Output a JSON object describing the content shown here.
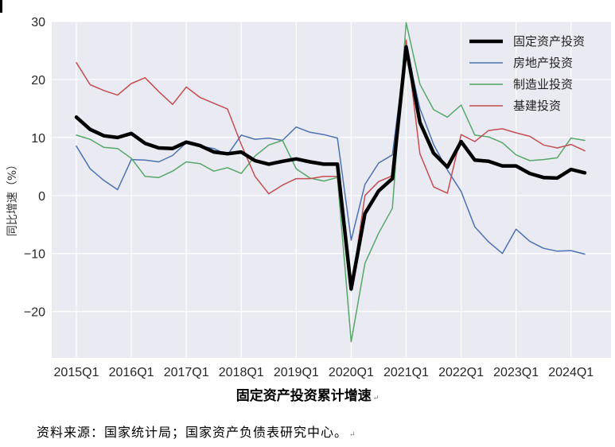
{
  "caption": "固定资产投资累计增速",
  "source": "资料来源：国家统计局；国家资产负债表研究中心。",
  "return_mark": "↵",
  "chart_data": {
    "type": "line",
    "ylabel": "同比增速（%）",
    "ylim": [
      -28,
      30
    ],
    "yticks": [
      -20,
      -10,
      0,
      10,
      20,
      30
    ],
    "ytick_labels": [
      "−20",
      "−10",
      "0",
      "10",
      "20",
      "30"
    ],
    "xticks": [
      "2015Q1",
      "2016Q1",
      "2017Q1",
      "2018Q1",
      "2019Q1",
      "2020Q1",
      "2021Q1",
      "2022Q1",
      "2023Q1",
      "2024Q1"
    ],
    "x_start_year": 2015,
    "x_count": 38,
    "grid": true,
    "legend_position": "top-right",
    "background": "#eaeaf2",
    "series": [
      {
        "name": "固定资产投资",
        "color": "#000000",
        "width": 4.5,
        "values": [
          13.5,
          11.4,
          10.3,
          10.0,
          10.7,
          9.0,
          8.2,
          8.1,
          9.2,
          8.6,
          7.5,
          7.2,
          7.5,
          6.0,
          5.4,
          5.9,
          6.3,
          5.8,
          5.4,
          5.4,
          -16.1,
          -3.1,
          0.8,
          2.9,
          25.6,
          12.6,
          7.3,
          4.9,
          9.3,
          6.1,
          5.9,
          5.1,
          5.1,
          3.8,
          3.1,
          3.0,
          4.5,
          3.9
        ]
      },
      {
        "name": "房地产投资",
        "color": "#4c72b0",
        "width": 1.5,
        "values": [
          8.5,
          4.6,
          2.6,
          1.0,
          6.2,
          6.1,
          5.8,
          6.9,
          9.1,
          8.5,
          8.1,
          7.0,
          10.4,
          9.7,
          9.9,
          9.5,
          11.8,
          10.9,
          10.5,
          9.9,
          -7.7,
          1.9,
          5.6,
          7.0,
          25.6,
          15.0,
          8.8,
          4.4,
          0.7,
          -5.4,
          -8.0,
          -10.0,
          -5.8,
          -7.9,
          -9.1,
          -9.6,
          -9.5,
          -10.1
        ]
      },
      {
        "name": "制造业投资",
        "color": "#55a868",
        "width": 1.5,
        "values": [
          10.4,
          9.7,
          8.3,
          8.1,
          6.4,
          3.3,
          3.1,
          4.2,
          5.8,
          5.5,
          4.2,
          4.8,
          3.8,
          6.8,
          8.7,
          9.5,
          4.6,
          3.0,
          2.5,
          3.1,
          -25.2,
          -11.7,
          -6.5,
          -2.2,
          29.8,
          19.2,
          14.8,
          13.5,
          15.6,
          10.4,
          10.1,
          9.1,
          7.0,
          6.0,
          6.2,
          6.5,
          9.9,
          9.5
        ]
      },
      {
        "name": "基建投资",
        "color": "#c44e52",
        "width": 1.5,
        "values": [
          22.9,
          19.1,
          18.1,
          17.3,
          19.3,
          20.3,
          17.9,
          15.7,
          18.7,
          16.9,
          15.9,
          14.9,
          8.8,
          3.3,
          0.3,
          1.8,
          2.9,
          2.9,
          3.3,
          3.3,
          -16.4,
          0.0,
          2.4,
          3.4,
          26.8,
          7.2,
          1.5,
          0.4,
          10.5,
          9.3,
          11.2,
          11.5,
          10.8,
          10.2,
          8.7,
          8.2,
          8.8,
          7.7
        ]
      }
    ]
  }
}
